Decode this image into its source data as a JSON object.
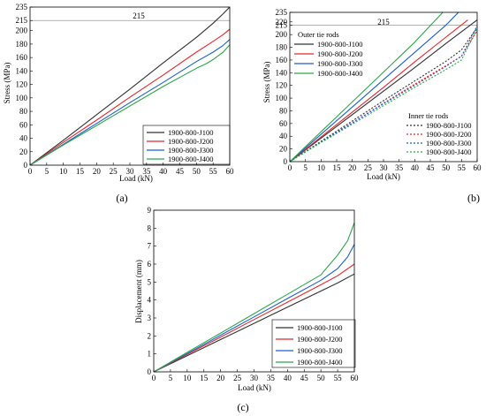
{
  "colors": {
    "J100": "#303030",
    "J200": "#e8262a",
    "J300": "#1b5fd4",
    "J400": "#2aa84a",
    "reference": "#9a9a9a"
  },
  "chart_data": [
    {
      "id": "a",
      "caption": "(a)",
      "type": "line",
      "xlabel": "Load (kN)",
      "ylabel": "Stress (MPa)",
      "xlim": [
        0,
        60
      ],
      "ylim": [
        0,
        235
      ],
      "xticks": [
        0,
        5,
        10,
        15,
        20,
        25,
        30,
        35,
        40,
        45,
        50,
        55,
        60
      ],
      "yticks": [
        0,
        20,
        40,
        60,
        80,
        100,
        120,
        140,
        160,
        180,
        200,
        215,
        235
      ],
      "reference_line": {
        "y": 215,
        "label": "215"
      },
      "legend_position": "bottom-right",
      "series": [
        {
          "name": "1900-800-J100",
          "color_key": "J100",
          "dash": "solid",
          "x": [
            0,
            3,
            10,
            20,
            30,
            40,
            50,
            55,
            58,
            60
          ],
          "y": [
            0,
            11,
            37,
            75,
            113,
            152,
            190,
            211,
            225,
            235
          ]
        },
        {
          "name": "1900-800-J200",
          "color_key": "J200",
          "dash": "solid",
          "x": [
            0,
            3,
            10,
            20,
            30,
            40,
            50,
            55,
            58,
            60
          ],
          "y": [
            0,
            10,
            34,
            67,
            101,
            134,
            168,
            184,
            194,
            202
          ]
        },
        {
          "name": "1900-800-J300",
          "color_key": "J300",
          "dash": "solid",
          "x": [
            0,
            3,
            10,
            20,
            30,
            40,
            50,
            55,
            58,
            60
          ],
          "y": [
            0,
            9,
            31,
            62,
            93,
            123,
            154,
            168,
            178,
            187
          ]
        },
        {
          "name": "1900-800-J400",
          "color_key": "J400",
          "dash": "solid",
          "x": [
            0,
            3,
            10,
            20,
            30,
            40,
            50,
            53,
            55,
            58,
            60
          ],
          "y": [
            0,
            9,
            30,
            59,
            88,
            117,
            144,
            151,
            157,
            168,
            179
          ]
        }
      ]
    },
    {
      "id": "b",
      "caption": "(b)",
      "type": "line",
      "xlabel": "Load (kN)",
      "ylabel": "Stress (MPa)",
      "xlim": [
        0,
        60
      ],
      "ylim": [
        0,
        235
      ],
      "xticks": [
        0,
        5,
        10,
        15,
        20,
        25,
        30,
        35,
        40,
        45,
        50,
        55,
        60
      ],
      "yticks": [
        0,
        20,
        40,
        60,
        80,
        100,
        120,
        140,
        160,
        180,
        200,
        215,
        220,
        235
      ],
      "reference_line": {
        "y": 215,
        "label": "215"
      },
      "legend_groups": [
        {
          "title": "Outer tie rods",
          "position": "top-left",
          "series_ids": [
            0,
            1,
            2,
            3
          ]
        },
        {
          "title": "Inner tie rods",
          "position": "center-right",
          "series_ids": [
            4,
            5,
            6,
            7
          ]
        }
      ],
      "series": [
        {
          "name": "1900-800-J100",
          "color_key": "J100",
          "dash": "solid",
          "x": [
            0,
            10,
            20,
            30,
            40,
            50,
            60
          ],
          "y": [
            0,
            37,
            74,
            111,
            148,
            186,
            223
          ]
        },
        {
          "name": "1900-800-J200",
          "color_key": "J200",
          "dash": "solid",
          "x": [
            0,
            10,
            20,
            30,
            40,
            50,
            57
          ],
          "y": [
            0,
            39,
            78,
            117,
            157,
            196,
            223
          ]
        },
        {
          "name": "1900-800-J300",
          "color_key": "J300",
          "dash": "solid",
          "x": [
            0,
            10,
            20,
            30,
            40,
            50,
            54
          ],
          "y": [
            0,
            43,
            86,
            129,
            172,
            215,
            235
          ]
        },
        {
          "name": "1900-800-J400",
          "color_key": "J400",
          "dash": "solid",
          "x": [
            0,
            10,
            20,
            30,
            40,
            49
          ],
          "y": [
            0,
            47,
            94,
            141,
            188,
            235
          ]
        },
        {
          "name": "1900-800-J100",
          "color_key": "J100",
          "dash": "dotted",
          "x": [
            0,
            10,
            20,
            30,
            40,
            50,
            55,
            60
          ],
          "y": [
            0,
            32,
            64,
            96,
            127,
            158,
            176,
            211
          ]
        },
        {
          "name": "1900-800-J200",
          "color_key": "J200",
          "dash": "dotted",
          "x": [
            0,
            10,
            20,
            30,
            40,
            50,
            55,
            60
          ],
          "y": [
            0,
            31,
            61,
            92,
            122,
            151,
            166,
            206
          ]
        },
        {
          "name": "1900-800-J300",
          "color_key": "J300",
          "dash": "dotted",
          "x": [
            0,
            10,
            20,
            30,
            40,
            50,
            55,
            60
          ],
          "y": [
            0,
            31,
            61,
            91,
            120,
            150,
            166,
            214
          ]
        },
        {
          "name": "1900-800-J400",
          "color_key": "J400",
          "dash": "dotted",
          "x": [
            0,
            10,
            20,
            30,
            40,
            50,
            55,
            60
          ],
          "y": [
            0,
            30,
            59,
            88,
            117,
            145,
            160,
            210
          ]
        }
      ]
    },
    {
      "id": "c",
      "caption": "(c)",
      "type": "line",
      "xlabel": "Load (kN)",
      "ylabel": "Displacement (mm)",
      "xlim": [
        0,
        60
      ],
      "ylim": [
        0,
        9
      ],
      "xticks": [
        0,
        5,
        10,
        15,
        20,
        25,
        30,
        35,
        40,
        45,
        50,
        55,
        60
      ],
      "yticks": [
        0,
        1,
        2,
        3,
        4,
        5,
        6,
        7,
        8,
        9
      ],
      "legend_position": "bottom-right",
      "series": [
        {
          "name": "1900-800-J100",
          "color_key": "J100",
          "dash": "solid",
          "x": [
            0,
            10,
            20,
            30,
            40,
            50,
            55,
            60
          ],
          "y": [
            0,
            0.9,
            1.8,
            2.7,
            3.6,
            4.5,
            4.95,
            5.45
          ]
        },
        {
          "name": "1900-800-J200",
          "color_key": "J200",
          "dash": "solid",
          "x": [
            0,
            10,
            20,
            30,
            40,
            50,
            55,
            60
          ],
          "y": [
            0,
            0.97,
            1.94,
            2.91,
            3.88,
            4.85,
            5.35,
            6.0
          ]
        },
        {
          "name": "1900-800-J300",
          "color_key": "J300",
          "dash": "solid",
          "x": [
            0,
            10,
            20,
            30,
            40,
            50,
            55,
            58,
            60
          ],
          "y": [
            0,
            1.02,
            2.04,
            3.06,
            4.08,
            5.1,
            5.75,
            6.4,
            7.1
          ]
        },
        {
          "name": "1900-800-J400",
          "color_key": "J400",
          "dash": "solid",
          "x": [
            0,
            10,
            20,
            30,
            40,
            50,
            52,
            55,
            58,
            60
          ],
          "y": [
            0,
            1.08,
            2.16,
            3.24,
            4.32,
            5.4,
            5.85,
            6.5,
            7.3,
            8.3
          ]
        }
      ]
    }
  ]
}
